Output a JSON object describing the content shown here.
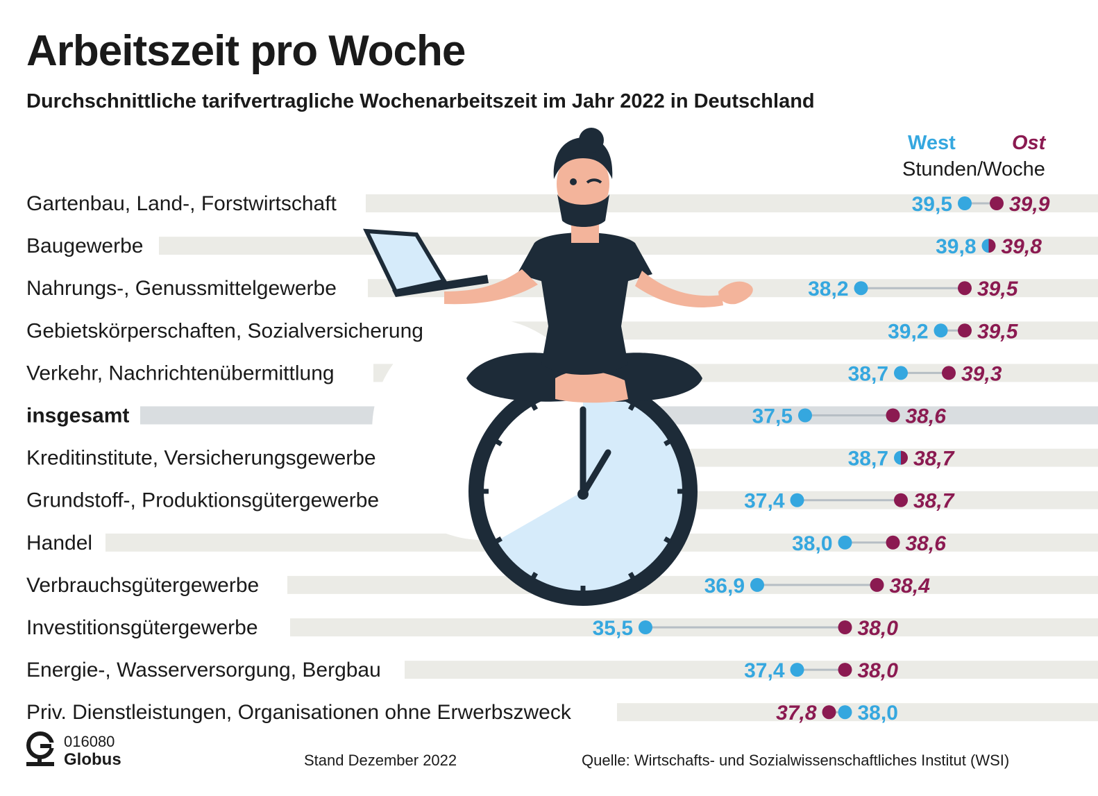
{
  "title": "Arbeitszeit pro Woche",
  "subtitle": "Durchschnittliche tarifvertragliche Wochenarbeitszeit im Jahr 2022 in Deutschland",
  "legend": {
    "west": "West",
    "ost": "Ost",
    "unit": "Stunden/Woche"
  },
  "colors": {
    "west": "#35a7df",
    "ost": "#8b1a51",
    "band": "#ebebe6",
    "band_total": "#d9dde0",
    "connector": "#b6bec4",
    "illustration": "#1d2b38"
  },
  "chart_data": {
    "type": "dot-plot",
    "title": "Arbeitszeit pro Woche",
    "subtitle": "Durchschnittliche tarifvertragliche Wochenarbeitszeit im Jahr 2022 in Deutschland",
    "unit": "Stunden/Woche",
    "series": [
      {
        "name": "West",
        "color": "#35a7df"
      },
      {
        "name": "Ost",
        "color": "#8b1a51"
      }
    ],
    "categories": [
      "Gartenbau, Land-, Forstwirtschaft",
      "Baugewerbe",
      "Nahrungs-, Genussmittelgewerbe",
      "Gebietskörperschaften, Sozialversicherung",
      "Verkehr, Nachrichtenübermittlung",
      "insgesamt",
      "Kreditinstitute, Versicherungsgewerbe",
      "Grundstoff-, Produktionsgütergewerbe",
      "Handel",
      "Verbrauchsgütergewerbe",
      "Investitionsgütergewerbe",
      "Energie-, Wasserversorgung, Bergbau",
      "Priv. Dienstleistungen, Organisationen ohne Erwerbszweck"
    ],
    "west": [
      39.5,
      39.8,
      38.2,
      39.2,
      38.7,
      37.5,
      38.7,
      37.4,
      38.0,
      36.9,
      35.5,
      37.4,
      38.0
    ],
    "ost": [
      39.9,
      39.8,
      39.5,
      39.5,
      39.3,
      38.6,
      38.7,
      38.7,
      38.6,
      38.4,
      38.0,
      38.0,
      37.8
    ],
    "west_labels": [
      "39,5",
      "39,8",
      "38,2",
      "39,2",
      "38,7",
      "37,5",
      "38,7",
      "37,4",
      "38,0",
      "36,9",
      "35,5",
      "37,4",
      "38,0"
    ],
    "ost_labels": [
      "39,9",
      "39,8",
      "39,5",
      "39,5",
      "39,3",
      "38,6",
      "38,7",
      "38,7",
      "38,6",
      "38,4",
      "38,0",
      "38,0",
      "37,8"
    ],
    "highlight": "insgesamt"
  },
  "footer": {
    "code": "016080",
    "brand": "Globus",
    "stand": "Stand Dezember 2022",
    "source": "Quelle: Wirtschafts- und Sozialwissenschaftliches Institut (WSI)"
  }
}
